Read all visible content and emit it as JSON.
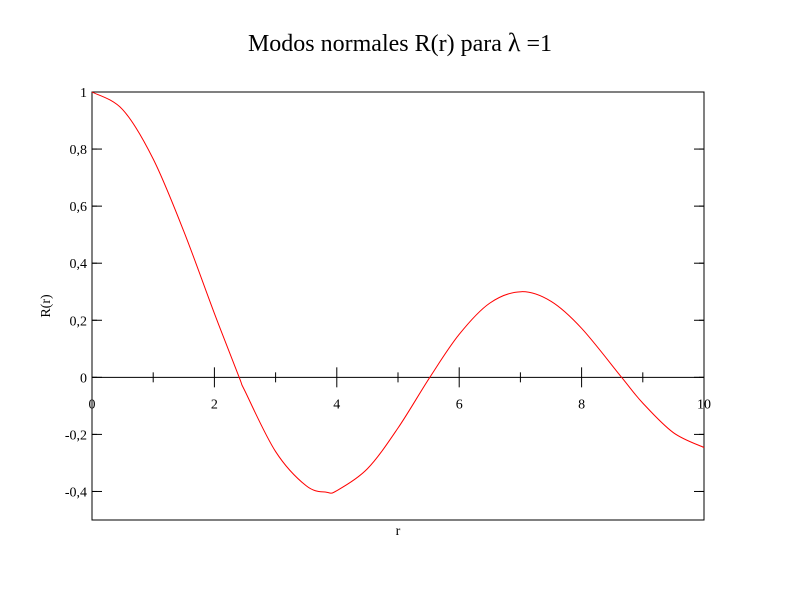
{
  "chart_data": {
    "type": "line",
    "title": "Modos normales  R(r) para λ =1",
    "title_parts": {
      "prefix": "Modos normales  R(r) para ",
      "symbol": "λ",
      "suffix": " =1"
    },
    "xlabel": "r",
    "ylabel": "R(r)",
    "xlim": [
      0,
      10
    ],
    "ylim": [
      -0.5,
      1
    ],
    "x_ticks": [
      0,
      2,
      4,
      6,
      8,
      10
    ],
    "x_tick_labels": [
      "0",
      "2",
      "4",
      "6",
      "8",
      "10"
    ],
    "y_ticks": [
      -0.4,
      -0.2,
      0,
      0.2,
      0.4,
      0.6,
      0.8,
      1
    ],
    "y_tick_labels": [
      "-0,4",
      "-0,2",
      "0",
      "0,2",
      "0,4",
      "0,6",
      "0,8",
      "1"
    ],
    "grid": false,
    "series": [
      {
        "name": "R(r)",
        "color": "#ff0000",
        "x": [
          0,
          0.5,
          1,
          1.5,
          2,
          2.4048,
          2.5,
          3,
          3.5,
          3.8317,
          4,
          4.5,
          5,
          5.5201,
          6,
          6.5,
          7.0156,
          7.5,
          8,
          8.6537,
          9,
          9.5,
          10
        ],
        "y": [
          1,
          0.9385,
          0.7652,
          0.5118,
          0.2239,
          0,
          -0.0484,
          -0.2601,
          -0.3801,
          -0.4028,
          -0.3971,
          -0.3205,
          -0.1776,
          0,
          0.1506,
          0.2601,
          0.3001,
          0.2663,
          0.1717,
          0,
          -0.0903,
          -0.1939,
          -0.2459
        ]
      }
    ]
  }
}
